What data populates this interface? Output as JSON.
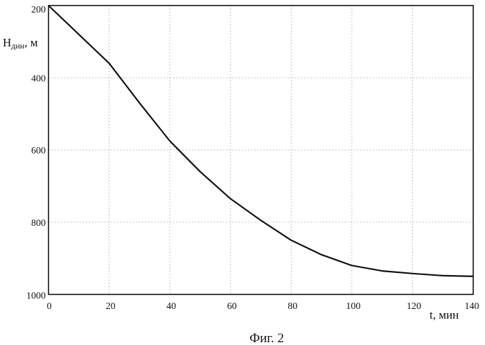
{
  "chart_data": {
    "type": "line",
    "x": [
      0,
      10,
      20,
      30,
      40,
      50,
      60,
      70,
      80,
      90,
      100,
      110,
      120,
      130,
      140
    ],
    "series": [
      {
        "values": [
          200,
          280,
          360,
          470,
          575,
          660,
          735,
          795,
          850,
          890,
          920,
          935,
          942,
          948,
          950
        ]
      }
    ],
    "xlim": [
      0,
      140
    ],
    "ylim": [
      200,
      1000
    ],
    "y_inverted": true,
    "x_ticks": [
      0,
      20,
      40,
      60,
      80,
      100,
      120,
      140
    ],
    "y_ticks": [
      200,
      400,
      600,
      800,
      1000
    ],
    "grid": "dotted",
    "ylabel_main": "H",
    "ylabel_sub": "дин",
    "ylabel_unit": ", м",
    "xlabel": "t, мин",
    "caption": "Фиг. 2",
    "line_color": "#111111",
    "grid_color": "#9a9a9a"
  }
}
